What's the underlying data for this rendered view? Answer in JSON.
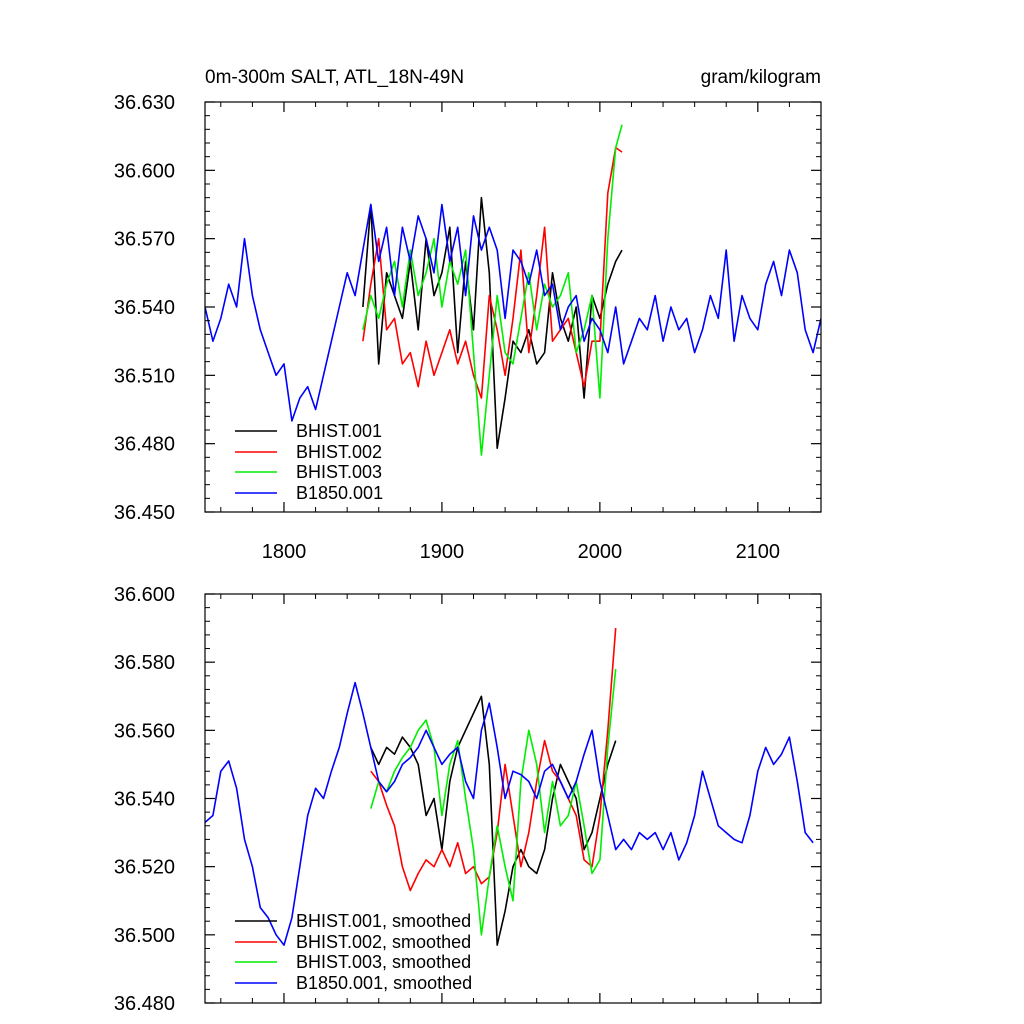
{
  "chart_data": [
    {
      "type": "line",
      "title_left": "0m-300m SALT, ATL_18N-49N",
      "title_right": "gram/kilogram",
      "xlabel": "",
      "ylabel": "",
      "xlim": [
        1750,
        2140
      ],
      "ylim": [
        36.45,
        36.63
      ],
      "yticks": [
        "36.450",
        "36.480",
        "36.510",
        "36.540",
        "36.570",
        "36.600",
        "36.630"
      ],
      "xticks": [
        "1800",
        "1900",
        "2000",
        "2100"
      ],
      "legend": [
        "BHIST.001",
        "BHIST.002",
        "BHIST.003",
        "B1850.001"
      ],
      "series": [
        {
          "name": "BHIST.001",
          "color": "#000000",
          "x": [
            1850,
            1855,
            1860,
            1865,
            1870,
            1875,
            1880,
            1885,
            1890,
            1895,
            1900,
            1905,
            1910,
            1915,
            1920,
            1925,
            1930,
            1935,
            1940,
            1945,
            1950,
            1955,
            1960,
            1965,
            1970,
            1975,
            1980,
            1985,
            1990,
            1995,
            2000,
            2005,
            2010,
            2014
          ],
          "y": [
            36.54,
            36.585,
            36.515,
            36.555,
            36.545,
            36.535,
            36.56,
            36.53,
            36.57,
            36.545,
            36.555,
            36.575,
            36.52,
            36.56,
            36.53,
            36.588,
            36.555,
            36.478,
            36.5,
            36.525,
            36.52,
            36.53,
            36.515,
            36.52,
            36.555,
            36.535,
            36.525,
            36.54,
            36.5,
            36.545,
            36.535,
            36.55,
            36.56,
            36.565
          ]
        },
        {
          "name": "BHIST.002",
          "color": "#ff0000",
          "x": [
            1850,
            1855,
            1860,
            1865,
            1870,
            1875,
            1880,
            1885,
            1890,
            1895,
            1900,
            1905,
            1910,
            1915,
            1920,
            1925,
            1930,
            1935,
            1940,
            1945,
            1950,
            1955,
            1960,
            1965,
            1970,
            1975,
            1980,
            1985,
            1990,
            1995,
            2000,
            2005,
            2010,
            2014
          ],
          "y": [
            36.525,
            36.55,
            36.57,
            36.53,
            36.535,
            36.515,
            36.52,
            36.505,
            36.525,
            36.51,
            36.52,
            36.53,
            36.515,
            36.525,
            36.51,
            36.5,
            36.545,
            36.53,
            36.51,
            36.535,
            36.565,
            36.52,
            36.545,
            36.575,
            36.525,
            36.53,
            36.535,
            36.52,
            36.505,
            36.525,
            36.525,
            36.59,
            36.61,
            36.608
          ]
        },
        {
          "name": "BHIST.003",
          "color": "#00ee00",
          "x": [
            1850,
            1855,
            1860,
            1865,
            1870,
            1875,
            1880,
            1885,
            1890,
            1895,
            1900,
            1905,
            1910,
            1915,
            1920,
            1925,
            1930,
            1935,
            1940,
            1945,
            1950,
            1955,
            1960,
            1965,
            1970,
            1975,
            1980,
            1985,
            1990,
            1995,
            2000,
            2005,
            2010,
            2014
          ],
          "y": [
            36.53,
            36.545,
            36.535,
            36.55,
            36.56,
            36.54,
            36.565,
            36.545,
            36.555,
            36.57,
            36.54,
            36.56,
            36.55,
            36.565,
            36.52,
            36.475,
            36.51,
            36.545,
            36.52,
            36.515,
            36.535,
            36.555,
            36.53,
            36.55,
            36.54,
            36.545,
            36.555,
            36.52,
            36.53,
            36.545,
            36.5,
            36.57,
            36.61,
            36.62
          ]
        },
        {
          "name": "B1850.001",
          "color": "#0000ff",
          "x": [
            1750,
            1755,
            1760,
            1765,
            1770,
            1775,
            1780,
            1785,
            1790,
            1795,
            1800,
            1805,
            1810,
            1815,
            1820,
            1825,
            1830,
            1835,
            1840,
            1845,
            1850,
            1855,
            1860,
            1865,
            1870,
            1875,
            1880,
            1885,
            1890,
            1895,
            1900,
            1905,
            1910,
            1915,
            1920,
            1925,
            1930,
            1935,
            1940,
            1945,
            1950,
            1955,
            1960,
            1965,
            1970,
            1975,
            1980,
            1985,
            1990,
            1995,
            2000,
            2005,
            2010,
            2015,
            2020,
            2025,
            2030,
            2035,
            2040,
            2045,
            2050,
            2055,
            2060,
            2065,
            2070,
            2075,
            2080,
            2085,
            2090,
            2095,
            2100,
            2105,
            2110,
            2115,
            2120,
            2125,
            2130,
            2135,
            2140
          ],
          "y": [
            36.54,
            36.525,
            36.535,
            36.55,
            36.54,
            36.57,
            36.545,
            36.53,
            36.52,
            36.51,
            36.515,
            36.49,
            36.5,
            36.505,
            36.495,
            36.51,
            36.525,
            36.54,
            36.555,
            36.545,
            36.565,
            36.585,
            36.56,
            36.575,
            36.545,
            36.575,
            36.56,
            36.58,
            36.57,
            36.555,
            36.585,
            36.56,
            36.575,
            36.545,
            36.58,
            36.565,
            36.575,
            36.565,
            36.535,
            36.565,
            36.56,
            36.55,
            36.565,
            36.545,
            36.55,
            36.53,
            36.54,
            36.545,
            36.525,
            36.535,
            36.53,
            36.52,
            36.54,
            36.515,
            36.525,
            36.535,
            36.53,
            36.545,
            36.525,
            36.54,
            36.53,
            36.535,
            36.52,
            36.53,
            36.545,
            36.535,
            36.565,
            36.525,
            36.545,
            36.535,
            36.53,
            36.55,
            36.56,
            36.545,
            36.565,
            36.555,
            36.53,
            36.52,
            36.535
          ]
        }
      ]
    },
    {
      "type": "line",
      "title_left": "",
      "title_right": "",
      "xlabel": "",
      "ylabel": "",
      "xlim": [
        1750,
        2140
      ],
      "ylim": [
        36.48,
        36.6
      ],
      "yticks": [
        "36.480",
        "36.500",
        "36.520",
        "36.540",
        "36.560",
        "36.580",
        "36.600"
      ],
      "xticks": [],
      "legend": [
        "BHIST.001, smoothed",
        "BHIST.002, smoothed",
        "BHIST.003, smoothed",
        "B1850.001, smoothed"
      ],
      "series": [
        {
          "name": "BHIST.001, smoothed",
          "color": "#000000",
          "x": [
            1855,
            1860,
            1865,
            1870,
            1875,
            1880,
            1885,
            1890,
            1895,
            1900,
            1905,
            1910,
            1915,
            1920,
            1925,
            1930,
            1935,
            1940,
            1945,
            1950,
            1955,
            1960,
            1965,
            1970,
            1975,
            1980,
            1985,
            1990,
            1995,
            2000,
            2005,
            2010
          ],
          "y": [
            36.555,
            36.55,
            36.555,
            36.553,
            36.558,
            36.555,
            36.55,
            36.535,
            36.54,
            36.525,
            36.545,
            36.555,
            36.56,
            36.565,
            36.57,
            36.55,
            36.497,
            36.507,
            36.52,
            36.525,
            36.52,
            36.518,
            36.525,
            36.54,
            36.55,
            36.545,
            36.54,
            36.525,
            36.53,
            36.54,
            36.55,
            36.557
          ]
        },
        {
          "name": "BHIST.002, smoothed",
          "color": "#ff0000",
          "x": [
            1855,
            1860,
            1865,
            1870,
            1875,
            1880,
            1885,
            1890,
            1895,
            1900,
            1905,
            1910,
            1915,
            1920,
            1925,
            1930,
            1935,
            1940,
            1945,
            1950,
            1955,
            1960,
            1965,
            1970,
            1975,
            1980,
            1985,
            1990,
            1995,
            2000,
            2005,
            2010
          ],
          "y": [
            36.548,
            36.545,
            36.538,
            36.532,
            36.52,
            36.513,
            36.518,
            36.522,
            36.52,
            36.525,
            36.52,
            36.527,
            36.518,
            36.52,
            36.515,
            36.517,
            36.53,
            36.55,
            36.535,
            36.52,
            36.53,
            36.545,
            36.557,
            36.548,
            36.545,
            36.54,
            36.535,
            36.522,
            36.52,
            36.535,
            36.56,
            36.59
          ]
        },
        {
          "name": "BHIST.003, smoothed",
          "color": "#00ee00",
          "x": [
            1855,
            1860,
            1865,
            1870,
            1875,
            1880,
            1885,
            1890,
            1895,
            1900,
            1905,
            1910,
            1915,
            1920,
            1925,
            1930,
            1935,
            1940,
            1945,
            1950,
            1955,
            1960,
            1965,
            1970,
            1975,
            1980,
            1985,
            1990,
            1995,
            2000,
            2005,
            2010
          ],
          "y": [
            36.537,
            36.545,
            36.542,
            36.548,
            36.552,
            36.555,
            36.56,
            36.563,
            36.555,
            36.535,
            36.55,
            36.557,
            36.54,
            36.525,
            36.5,
            36.517,
            36.532,
            36.52,
            36.51,
            36.545,
            36.56,
            36.55,
            36.53,
            36.545,
            36.532,
            36.535,
            36.545,
            36.532,
            36.518,
            36.522,
            36.555,
            36.578
          ]
        },
        {
          "name": "B1850.001, smoothed",
          "color": "#0000ff",
          "x": [
            1750,
            1755,
            1760,
            1765,
            1770,
            1775,
            1780,
            1785,
            1790,
            1795,
            1800,
            1805,
            1810,
            1815,
            1820,
            1825,
            1830,
            1835,
            1840,
            1845,
            1850,
            1855,
            1860,
            1865,
            1870,
            1875,
            1880,
            1885,
            1890,
            1895,
            1900,
            1905,
            1910,
            1915,
            1920,
            1925,
            1930,
            1935,
            1940,
            1945,
            1950,
            1955,
            1960,
            1965,
            1970,
            1975,
            1980,
            1985,
            1990,
            1995,
            2000,
            2005,
            2010,
            2015,
            2020,
            2025,
            2030,
            2035,
            2040,
            2045,
            2050,
            2055,
            2060,
            2065,
            2070,
            2075,
            2080,
            2085,
            2090,
            2095,
            2100,
            2105,
            2110,
            2115,
            2120,
            2125,
            2130,
            2135
          ],
          "y": [
            36.533,
            36.535,
            36.548,
            36.551,
            36.543,
            36.528,
            36.52,
            36.508,
            36.505,
            36.5,
            36.497,
            36.505,
            36.52,
            36.535,
            36.543,
            36.54,
            36.548,
            36.555,
            36.565,
            36.574,
            36.565,
            36.555,
            36.545,
            36.542,
            36.545,
            36.55,
            36.552,
            36.555,
            36.56,
            36.555,
            36.55,
            36.553,
            36.555,
            36.545,
            36.54,
            36.56,
            36.568,
            36.555,
            36.54,
            36.548,
            36.547,
            36.545,
            36.54,
            36.548,
            36.55,
            36.545,
            36.54,
            36.545,
            36.553,
            36.56,
            36.545,
            36.535,
            36.525,
            36.528,
            36.525,
            36.53,
            36.528,
            36.53,
            36.525,
            36.53,
            36.522,
            36.527,
            36.535,
            36.548,
            36.54,
            36.532,
            36.53,
            36.528,
            36.527,
            36.535,
            36.548,
            36.555,
            36.55,
            36.553,
            36.558,
            36.545,
            36.53,
            36.527
          ]
        }
      ]
    }
  ]
}
